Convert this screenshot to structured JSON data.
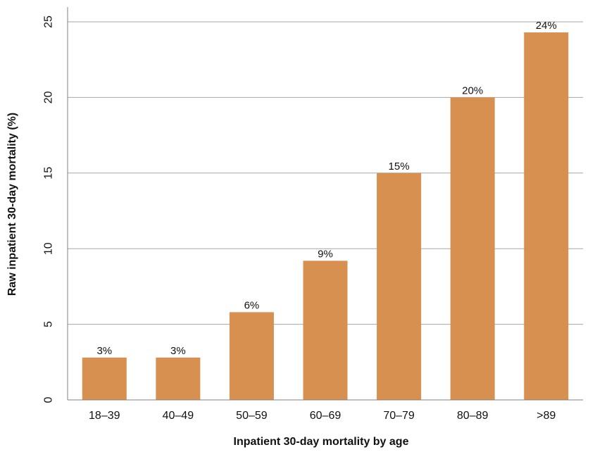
{
  "chart_data": {
    "type": "bar",
    "title": "",
    "xlabel": "Inpatient 30-day mortality by age",
    "ylabel": "Raw inpatient 30-day mortality (%)",
    "categories": [
      "18–39",
      "40–49",
      "50–59",
      "60–69",
      "70–79",
      "80–89",
      ">89"
    ],
    "values": [
      2.8,
      2.8,
      5.8,
      9.2,
      15.0,
      20.0,
      24.3
    ],
    "data_labels": [
      "3%",
      "3%",
      "6%",
      "9%",
      "15%",
      "20%",
      "24%"
    ],
    "ylim": [
      0,
      25
    ],
    "yticks": [
      "0",
      "5",
      "10",
      "15",
      "20",
      "25"
    ],
    "grid": true,
    "colors": {
      "bar": "#D89050",
      "grid": "#A6A6A6",
      "axis": "#808080"
    }
  }
}
